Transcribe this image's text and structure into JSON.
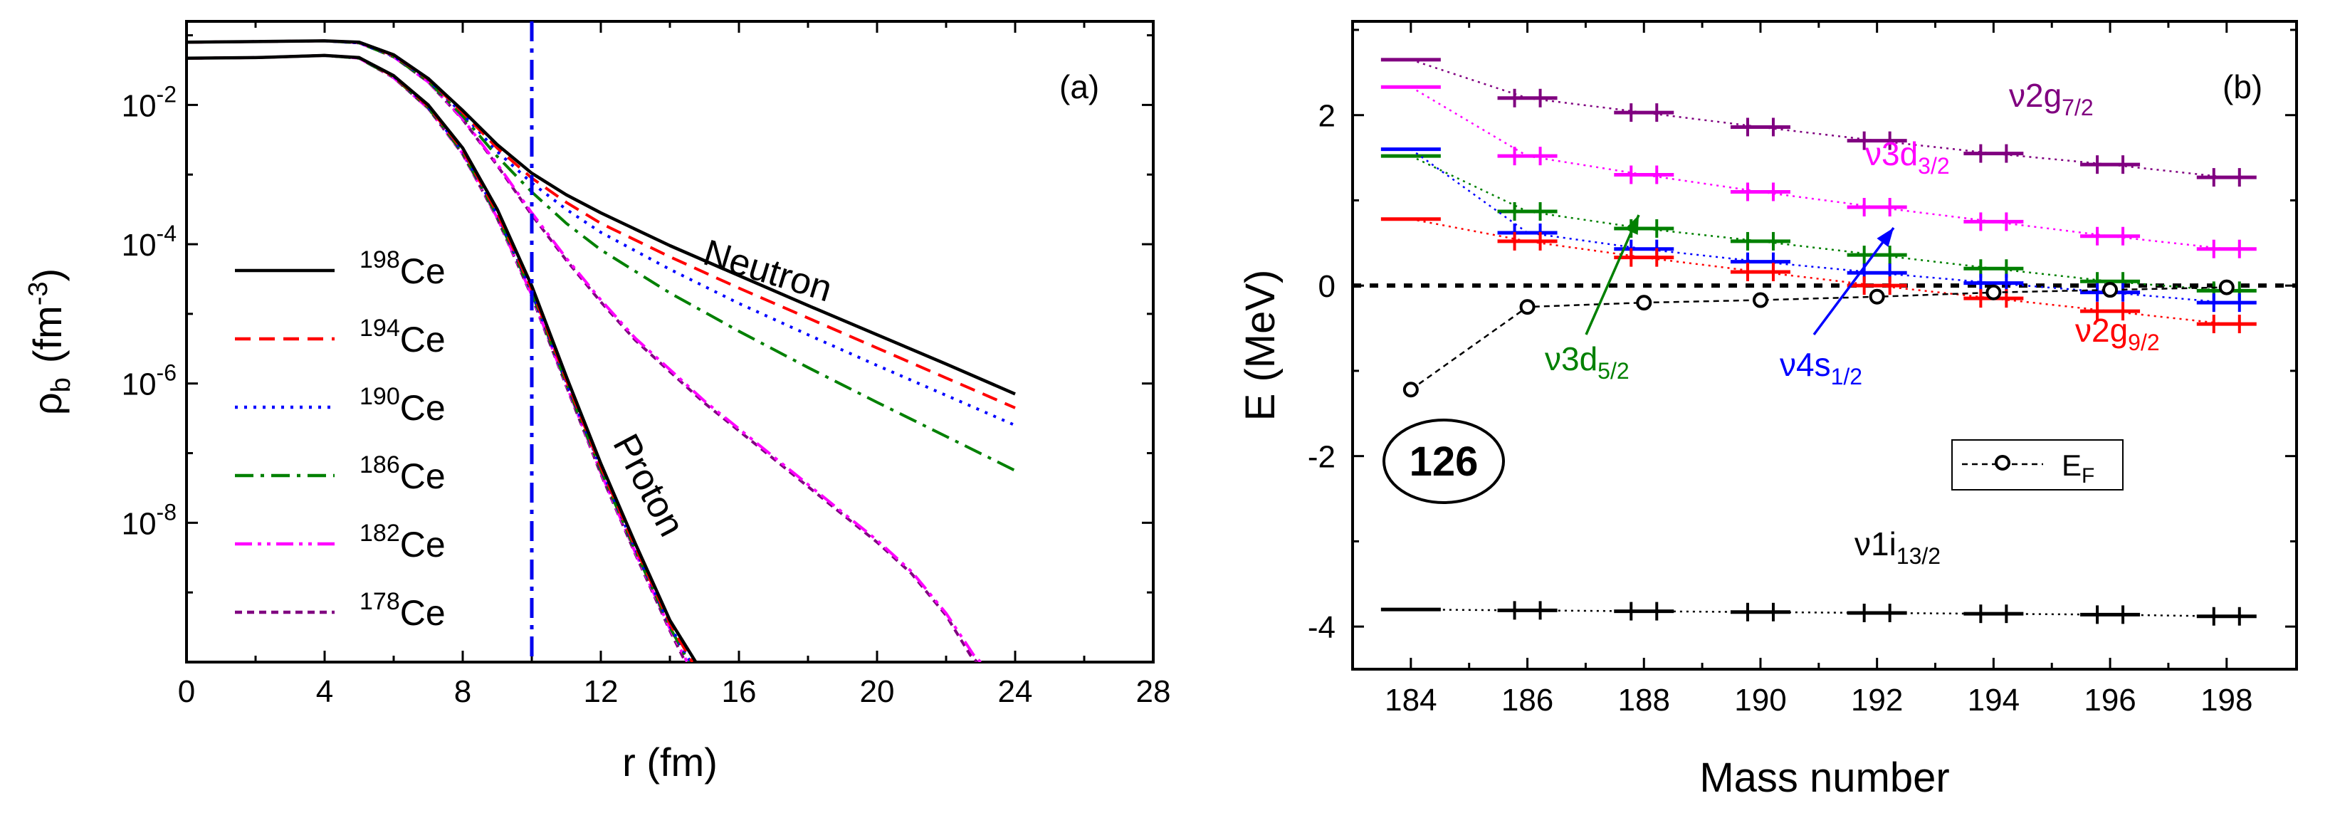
{
  "chart_data": [
    {
      "panel": "(a)",
      "type": "line",
      "xlabel": "r (fm)",
      "ylabel": "ρ",
      "ylabel_sub": "b",
      "ylabel_unit": "(fm",
      "ylabel_unit_sup": "-3",
      "ylabel_unit_close": ")",
      "xlim": [
        0,
        28
      ],
      "ylim_log10": [
        -10,
        -0.8
      ],
      "yscale": "log",
      "xticks": [
        0,
        4,
        8,
        12,
        16,
        20,
        24,
        28
      ],
      "xtick_labels": [
        "0",
        "4",
        "8",
        "12",
        "16",
        "20",
        "24",
        "28"
      ],
      "yticks_log10": [
        -2,
        -4,
        -6,
        -8
      ],
      "ytick_base": "10",
      "ytick_exps": [
        "-2",
        "-4",
        "-6",
        "-8"
      ],
      "vline_x": 10,
      "vline_color": "#0000ee",
      "annotations": {
        "neutron": "Neutron",
        "proton": "Proton"
      },
      "legend_position": "left",
      "series": [
        {
          "name": "Ce",
          "mass": "198",
          "color": "#000000",
          "dash": "solid",
          "neutron": [
            [
              0,
              -1.1
            ],
            [
              2,
              -1.09
            ],
            [
              4,
              -1.08
            ],
            [
              5,
              -1.1
            ],
            [
              6,
              -1.28
            ],
            [
              7,
              -1.62
            ],
            [
              8,
              -2.08
            ],
            [
              9,
              -2.57
            ],
            [
              10,
              -2.98
            ],
            [
              11,
              -3.29
            ],
            [
              12,
              -3.55
            ],
            [
              14,
              -4.02
            ],
            [
              16,
              -4.45
            ],
            [
              18,
              -4.88
            ],
            [
              20,
              -5.3
            ],
            [
              22,
              -5.72
            ],
            [
              24,
              -6.15
            ]
          ],
          "proton": [
            [
              0,
              -1.33
            ],
            [
              2,
              -1.32
            ],
            [
              4,
              -1.29
            ],
            [
              5,
              -1.32
            ],
            [
              6,
              -1.58
            ],
            [
              7,
              -2.0
            ],
            [
              8,
              -2.62
            ],
            [
              9,
              -3.5
            ],
            [
              10,
              -4.6
            ],
            [
              11,
              -5.9
            ],
            [
              12,
              -7.15
            ],
            [
              13,
              -8.3
            ],
            [
              14,
              -9.4
            ],
            [
              14.75,
              -10.0
            ]
          ]
        },
        {
          "name": "Ce",
          "mass": "194",
          "color": "#ff0000",
          "dash": "dashed",
          "neutron": [
            [
              0,
              -1.1
            ],
            [
              2,
              -1.09
            ],
            [
              4,
              -1.08
            ],
            [
              5,
              -1.1
            ],
            [
              6,
              -1.29
            ],
            [
              7,
              -1.63
            ],
            [
              8,
              -2.11
            ],
            [
              9,
              -2.62
            ],
            [
              10,
              -3.05
            ],
            [
              11,
              -3.4
            ],
            [
              12,
              -3.7
            ],
            [
              14,
              -4.18
            ],
            [
              16,
              -4.63
            ],
            [
              18,
              -5.06
            ],
            [
              20,
              -5.49
            ],
            [
              22,
              -5.92
            ],
            [
              24,
              -6.35
            ]
          ],
          "proton": [
            [
              0,
              -1.33
            ],
            [
              2,
              -1.32
            ],
            [
              4,
              -1.29
            ],
            [
              5,
              -1.32
            ],
            [
              6,
              -1.59
            ],
            [
              7,
              -2.02
            ],
            [
              8,
              -2.65
            ],
            [
              9,
              -3.55
            ],
            [
              10,
              -4.65
            ],
            [
              11,
              -5.95
            ],
            [
              12,
              -7.2
            ],
            [
              13,
              -8.35
            ],
            [
              14,
              -9.45
            ],
            [
              14.65,
              -10.0
            ]
          ]
        },
        {
          "name": "Ce",
          "mass": "190",
          "color": "#0000ff",
          "dash": "dotted",
          "neutron": [
            [
              0,
              -1.1
            ],
            [
              2,
              -1.09
            ],
            [
              4,
              -1.08
            ],
            [
              5,
              -1.11
            ],
            [
              6,
              -1.3
            ],
            [
              7,
              -1.64
            ],
            [
              8,
              -2.13
            ],
            [
              9,
              -2.67
            ],
            [
              10,
              -3.12
            ],
            [
              11,
              -3.5
            ],
            [
              12,
              -3.83
            ],
            [
              14,
              -4.36
            ],
            [
              16,
              -4.85
            ],
            [
              18,
              -5.3
            ],
            [
              20,
              -5.74
            ],
            [
              22,
              -6.17
            ],
            [
              24,
              -6.6
            ]
          ],
          "proton": [
            [
              0,
              -1.33
            ],
            [
              2,
              -1.32
            ],
            [
              4,
              -1.29
            ],
            [
              5,
              -1.32
            ],
            [
              6,
              -1.59
            ],
            [
              7,
              -2.03
            ],
            [
              8,
              -2.67
            ],
            [
              9,
              -3.57
            ],
            [
              10,
              -4.68
            ],
            [
              11,
              -5.98
            ],
            [
              12,
              -7.22
            ],
            [
              13,
              -8.38
            ],
            [
              14,
              -9.48
            ],
            [
              14.6,
              -10.0
            ]
          ]
        },
        {
          "name": "Ce",
          "mass": "186",
          "color": "#008000",
          "dash": "dashdot",
          "neutron": [
            [
              0,
              -1.1
            ],
            [
              2,
              -1.09
            ],
            [
              4,
              -1.08
            ],
            [
              5,
              -1.11
            ],
            [
              6,
              -1.31
            ],
            [
              7,
              -1.66
            ],
            [
              8,
              -2.16
            ],
            [
              9,
              -2.74
            ],
            [
              10,
              -3.25
            ],
            [
              11,
              -3.7
            ],
            [
              12,
              -4.08
            ],
            [
              14,
              -4.7
            ],
            [
              16,
              -5.25
            ],
            [
              18,
              -5.77
            ],
            [
              20,
              -6.27
            ],
            [
              22,
              -6.76
            ],
            [
              24,
              -7.25
            ]
          ],
          "proton": [
            [
              0,
              -1.33
            ],
            [
              2,
              -1.32
            ],
            [
              4,
              -1.29
            ],
            [
              5,
              -1.33
            ],
            [
              6,
              -1.6
            ],
            [
              7,
              -2.04
            ],
            [
              8,
              -2.69
            ],
            [
              9,
              -3.6
            ],
            [
              10,
              -4.7
            ],
            [
              11,
              -6.0
            ],
            [
              12,
              -7.25
            ],
            [
              13,
              -8.4
            ],
            [
              14,
              -9.5
            ],
            [
              14.55,
              -10.0
            ]
          ]
        },
        {
          "name": "Ce",
          "mass": "182",
          "color": "#ff00ff",
          "dash": "dashdotdot",
          "neutron": [
            [
              0,
              -1.1
            ],
            [
              2,
              -1.09
            ],
            [
              4,
              -1.08
            ],
            [
              5,
              -1.11
            ],
            [
              6,
              -1.31
            ],
            [
              7,
              -1.67
            ],
            [
              8,
              -2.2
            ],
            [
              9,
              -2.85
            ],
            [
              10,
              -3.55
            ],
            [
              11,
              -4.2
            ],
            [
              12,
              -4.8
            ],
            [
              13,
              -5.35
            ],
            [
              14,
              -5.8
            ],
            [
              15,
              -6.25
            ],
            [
              16,
              -6.65
            ],
            [
              17,
              -7.05
            ],
            [
              18,
              -7.45
            ],
            [
              19,
              -7.85
            ],
            [
              20,
              -8.25
            ],
            [
              21,
              -8.7
            ],
            [
              22,
              -9.3
            ],
            [
              22.8,
              -9.9
            ],
            [
              23,
              -10.0
            ]
          ],
          "proton": [
            [
              0,
              -1.33
            ],
            [
              2,
              -1.32
            ],
            [
              4,
              -1.29
            ],
            [
              5,
              -1.33
            ],
            [
              6,
              -1.61
            ],
            [
              7,
              -2.05
            ],
            [
              8,
              -2.7
            ],
            [
              9,
              -3.62
            ],
            [
              10,
              -4.73
            ],
            [
              11,
              -6.02
            ],
            [
              12,
              -7.28
            ],
            [
              13,
              -8.43
            ],
            [
              14,
              -9.52
            ],
            [
              14.5,
              -10.0
            ]
          ]
        },
        {
          "name": "Ce",
          "mass": "178",
          "color": "#800080",
          "dash": "shortdash",
          "neutron": [
            [
              0,
              -1.1
            ],
            [
              2,
              -1.09
            ],
            [
              4,
              -1.08
            ],
            [
              5,
              -1.11
            ],
            [
              6,
              -1.31
            ],
            [
              7,
              -1.67
            ],
            [
              8,
              -2.21
            ],
            [
              9,
              -2.87
            ],
            [
              10,
              -3.58
            ],
            [
              11,
              -4.23
            ],
            [
              12,
              -4.83
            ],
            [
              13,
              -5.38
            ],
            [
              14,
              -5.83
            ],
            [
              15,
              -6.28
            ],
            [
              16,
              -6.68
            ],
            [
              17,
              -7.08
            ],
            [
              18,
              -7.48
            ],
            [
              19,
              -7.88
            ],
            [
              20,
              -8.28
            ],
            [
              21,
              -8.73
            ],
            [
              22,
              -9.33
            ],
            [
              22.7,
              -9.9
            ],
            [
              22.9,
              -10.0
            ]
          ],
          "proton": [
            [
              0,
              -1.33
            ],
            [
              2,
              -1.32
            ],
            [
              4,
              -1.29
            ],
            [
              5,
              -1.33
            ],
            [
              6,
              -1.61
            ],
            [
              7,
              -2.05
            ],
            [
              8,
              -2.71
            ],
            [
              9,
              -3.63
            ],
            [
              10,
              -4.75
            ],
            [
              11,
              -6.04
            ],
            [
              12,
              -7.3
            ],
            [
              13,
              -8.45
            ],
            [
              14,
              -9.55
            ],
            [
              14.45,
              -10.0
            ]
          ]
        }
      ]
    },
    {
      "panel": "(b)",
      "type": "line",
      "xlabel": "Mass number",
      "ylabel": "E (MeV)",
      "xlim": [
        183,
        199.2
      ],
      "ylim": [
        -4.5,
        3.1
      ],
      "xticks": [
        184,
        186,
        188,
        190,
        192,
        194,
        196,
        198
      ],
      "xtick_labels": [
        "184",
        "186",
        "188",
        "190",
        "192",
        "194",
        "196",
        "198"
      ],
      "yticks": [
        2,
        0,
        -2,
        -4
      ],
      "ytick_labels": [
        "2",
        "0",
        "-2",
        "-4"
      ],
      "magic_label": "126",
      "legend": {
        "label": "E",
        "sub": "F"
      },
      "level_labels": [
        {
          "key": "g72",
          "text": "ν2g",
          "sub": "7/2",
          "color": "#800080"
        },
        {
          "key": "d32",
          "text": "ν3d",
          "sub": "3/2",
          "color": "#ff00ff"
        },
        {
          "key": "d52",
          "text": "ν3d",
          "sub": "5/2",
          "color": "#008000"
        },
        {
          "key": "s12",
          "text": "ν4s",
          "sub": "1/2",
          "color": "#0000ff"
        },
        {
          "key": "g92",
          "text": "ν2g",
          "sub": "9/2",
          "color": "#ff0000"
        },
        {
          "key": "i132",
          "text": "ν1i",
          "sub": "13/2",
          "color": "#000000"
        }
      ],
      "mass_numbers": [
        184,
        186,
        188,
        190,
        192,
        194,
        196,
        198
      ],
      "levels": [
        {
          "name": "ν2g7/2",
          "color": "#800080",
          "values": [
            2.65,
            2.2,
            2.03,
            1.86,
            1.7,
            1.55,
            1.42,
            1.27
          ]
        },
        {
          "name": "ν3d3/2",
          "color": "#ff00ff",
          "values": [
            2.33,
            1.52,
            1.3,
            1.1,
            0.92,
            0.75,
            0.58,
            0.43
          ]
        },
        {
          "name": "ν3d5/2",
          "color": "#008000",
          "values": [
            1.52,
            0.87,
            0.67,
            0.52,
            0.36,
            0.2,
            0.05,
            -0.06
          ]
        },
        {
          "name": "ν4s1/2",
          "color": "#0000ff",
          "values": [
            1.6,
            0.62,
            0.43,
            0.28,
            0.15,
            0.03,
            -0.08,
            -0.2
          ]
        },
        {
          "name": "ν2g9/2",
          "color": "#ff0000",
          "values": [
            0.78,
            0.52,
            0.33,
            0.16,
            0.0,
            -0.15,
            -0.3,
            -0.45
          ]
        },
        {
          "name": "ν1i13/2",
          "color": "#000000",
          "values": [
            -3.8,
            -3.81,
            -3.82,
            -3.83,
            -3.84,
            -3.85,
            -3.86,
            -3.88
          ]
        }
      ],
      "fermi_energy": [
        -1.22,
        -0.25,
        -0.2,
        -0.17,
        -0.13,
        -0.08,
        -0.05,
        -0.02
      ]
    }
  ]
}
